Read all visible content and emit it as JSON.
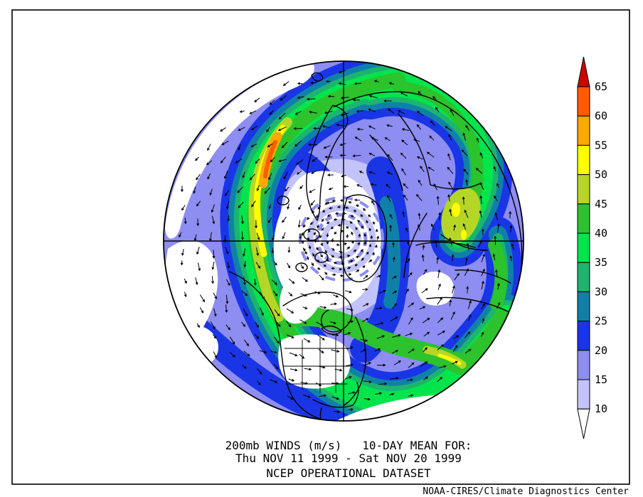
{
  "title": {
    "line1": "200mb WINDS (m/s)   10-DAY MEAN FOR:",
    "line2": "Thu NOV 11 1999 - Sat NOV 20 1999",
    "line3": "NCEP OPERATIONAL DATASET"
  },
  "credit": "NOAA-CIRES/Climate Diagnostics Center",
  "colorbar": {
    "tick_labels": [
      "65",
      "60",
      "55",
      "50",
      "45",
      "40",
      "35",
      "30",
      "25",
      "20",
      "15",
      "10"
    ],
    "bands": [
      {
        "range": "> 65",
        "palette_key": "over_65"
      },
      {
        "range": "60-65",
        "palette_key": "v60_65"
      },
      {
        "range": "55-60",
        "palette_key": "v55_60"
      },
      {
        "range": "50-55",
        "palette_key": "v50_55"
      },
      {
        "range": "45-50",
        "palette_key": "v45_50"
      },
      {
        "range": "40-45",
        "palette_key": "v40_45"
      },
      {
        "range": "35-40",
        "palette_key": "v35_40"
      },
      {
        "range": "30-35",
        "palette_key": "v30_35"
      },
      {
        "range": "25-30",
        "palette_key": "v25_30"
      },
      {
        "range": "20-25",
        "palette_key": "v20_25"
      },
      {
        "range": "15-20",
        "palette_key": "v15_20"
      },
      {
        "range": "10-15",
        "palette_key": "v10_15"
      },
      {
        "range": "< 10",
        "palette_key": "under_10"
      }
    ]
  },
  "palette": {
    "background": "#ffffff",
    "coastline": "#000000",
    "under_10": "#ffffff",
    "v10_15": "#c3c3fb",
    "v15_20": "#8d8df2",
    "v20_25": "#1a35e6",
    "v25_30": "#0f81a9",
    "v30_35": "#1db46e",
    "v35_40": "#00e54c",
    "v40_45": "#2cc32c",
    "v45_50": "#b5d627",
    "v50_55": "#ffff00",
    "v55_60": "#ffa800",
    "v60_65": "#ff5c00",
    "over_65": "#d00000"
  },
  "chart_data": {
    "type": "heatmap",
    "title": "200mb WINDS (m/s)   10-DAY MEAN FOR:",
    "subtitle": "Thu NOV 11 1999 - Sat NOV 20 1999",
    "dataset": "NCEP OPERATIONAL DATASET",
    "units": "m/s",
    "projection": "Northern Hemisphere polar stereographic, North Pole centered",
    "field": "10-day mean 200mb wind speed (filled contours) with wind direction arrows overlaid",
    "contour_interval": 5,
    "contour_levels": [
      10,
      15,
      20,
      25,
      30,
      35,
      40,
      45,
      50,
      55,
      60,
      65
    ],
    "colorbar_range": [
      10,
      65
    ],
    "legend_position": "right",
    "features": [
      {
        "feature": "strongest jet maximum over the Norwegian Sea / Scandinavia",
        "speed_band": "55-65 m/s"
      },
      {
        "feature": "jet streak over central Asia",
        "speed_band": "45-55 m/s"
      },
      {
        "feature": "subtropical jet over eastern North America / western Atlantic",
        "speed_band": "45-55 m/s"
      },
      {
        "feature": "broad band of 30-45 m/s winds across Siberia",
        "speed_band": "30-45 m/s"
      },
      {
        "feature": "calm region at the polar cap with cyclonic swirl of arrows",
        "speed_band": "< 10 m/s"
      },
      {
        "feature": "calm region over the northeast Pacific",
        "speed_band": "< 10 m/s"
      },
      {
        "feature": "calm region over the southwestern United States",
        "speed_band": "< 10 m/s"
      },
      {
        "feature": "calm region over the central subtropical Atlantic",
        "speed_band": "< 10 m/s"
      }
    ]
  }
}
